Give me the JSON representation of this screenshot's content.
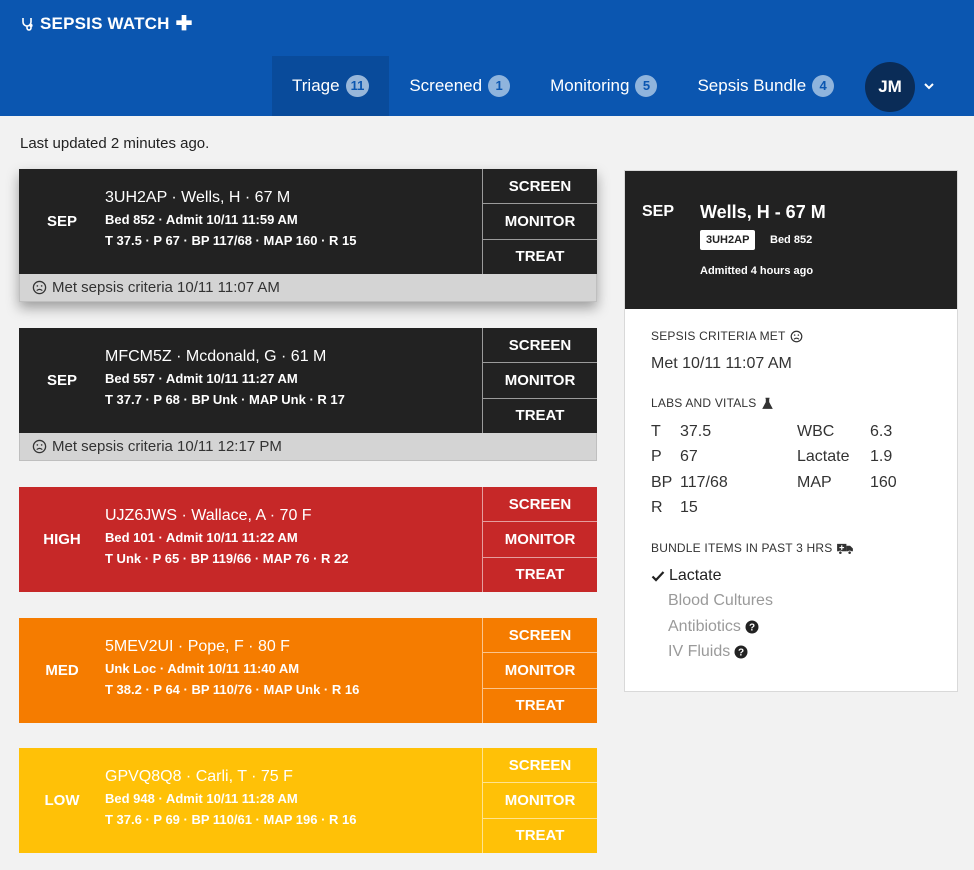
{
  "app": {
    "title": "SEPSIS WATCH"
  },
  "nav": {
    "tabs": [
      {
        "label": "Triage",
        "count": "11"
      },
      {
        "label": "Screened",
        "count": "1"
      },
      {
        "label": "Monitoring",
        "count": "5"
      },
      {
        "label": "Sepsis Bundle",
        "count": "4"
      }
    ]
  },
  "user": {
    "initials": "JM"
  },
  "status": {
    "updated": "Last updated 2 minutes ago."
  },
  "actions": {
    "screen": "SCREEN",
    "monitor": "MONITOR",
    "treat": "TREAT"
  },
  "patients": [
    {
      "level": "SEP",
      "line1": "3UH2AP · Wells, H · 67 M",
      "line2": "Bed 852 · Admit 10/11 11:59 AM",
      "line3": "T 37.5 · P 67 · BP 117/68 · MAP 160 · R 15",
      "footer": "Met sepsis criteria 10/11 11:07 AM"
    },
    {
      "level": "SEP",
      "line1": "MFCM5Z · Mcdonald, G · 61 M",
      "line2": "Bed 557 · Admit 10/11 11:27 AM",
      "line3": "T 37.7 · P 68 · BP Unk · MAP Unk · R 17",
      "footer": "Met sepsis criteria 10/11 12:17 PM"
    },
    {
      "level": "HIGH",
      "line1": "UJZ6JWS · Wallace, A · 70 F",
      "line2": "Bed 101 · Admit 10/11 11:22 AM",
      "line3": "T Unk · P 65 · BP 119/66 · MAP 76 · R 22"
    },
    {
      "level": "MED",
      "line1": "5MEV2UI · Pope, F · 80 F",
      "line2": "Unk Loc · Admit 10/11 11:40 AM",
      "line3": "T 38.2 · P 64 · BP 110/76 · MAP Unk · R 16"
    },
    {
      "level": "LOW",
      "line1": "GPVQ8Q8 · Carli, T · 75 F",
      "line2": "Bed 948 · Admit 10/11 11:28 AM",
      "line3": "T 37.6 · P 69 · BP 110/61 · MAP 196 · R 16"
    }
  ],
  "detail": {
    "level": "SEP",
    "name": "Wells, H - 67 M",
    "mrn": "3UH2AP",
    "bed": "Bed 852",
    "admitted": "Admitted 4 hours ago",
    "criteria_title": "SEPSIS CRITERIA MET",
    "criteria_value": "Met 10/11 11:07 AM",
    "labs_title": "LABS AND VITALS",
    "vitals_left": [
      {
        "label": "T",
        "value": "37.5"
      },
      {
        "label": "P",
        "value": "67"
      },
      {
        "label": "BP",
        "value": "117/68"
      },
      {
        "label": "R",
        "value": "15"
      }
    ],
    "vitals_right": [
      {
        "label": "WBC",
        "value": "6.3"
      },
      {
        "label": "Lactate",
        "value": "1.9"
      },
      {
        "label": "MAP",
        "value": "160"
      }
    ],
    "bundle_title": "BUNDLE ITEMS IN PAST 3 HRS",
    "bundle_items": [
      {
        "label": "Lactate",
        "done": true
      },
      {
        "label": "Blood Cultures",
        "done": false
      },
      {
        "label": "Antibiotics",
        "done": false,
        "help": true
      },
      {
        "label": "IV Fluids",
        "done": false,
        "help": true
      }
    ]
  },
  "colors": {
    "header": "#0b56b0",
    "sep": "#222222",
    "high": "#c62828",
    "med": "#f57c00",
    "low": "#ffc107"
  },
  "icons": {
    "brand": "stethoscope-icon",
    "brand_plus": "plus-icon",
    "sad": "sad-face-icon",
    "labs": "flask-icon",
    "bundle": "ambulance-icon",
    "check": "check-icon",
    "help": "question-circle-icon",
    "chevron": "chevron-down-icon"
  }
}
